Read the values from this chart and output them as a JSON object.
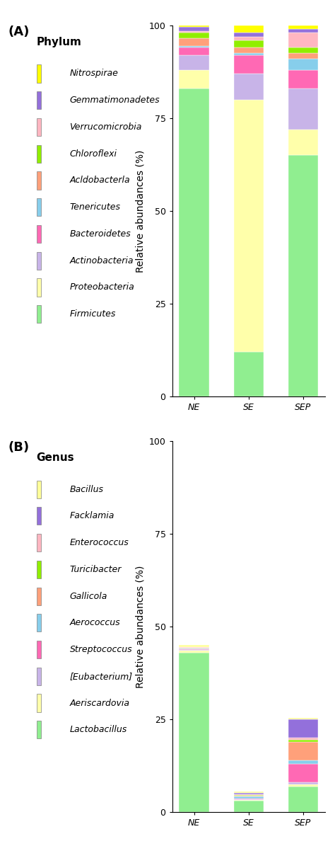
{
  "phylum": {
    "categories": [
      "NE",
      "SE",
      "SEP"
    ],
    "layers": [
      {
        "name": "Firmicutes",
        "color": "#90EE90",
        "values": [
          83,
          12,
          65
        ]
      },
      {
        "name": "Proteobacteria",
        "color": "#FFFFAA",
        "values": [
          5,
          68,
          7
        ]
      },
      {
        "name": "Actinobacteria",
        "color": "#C8B4E8",
        "values": [
          4,
          7,
          11
        ]
      },
      {
        "name": "Bacteroidetes",
        "color": "#FF69B4",
        "values": [
          2,
          5,
          5
        ]
      },
      {
        "name": "Tenericutes",
        "color": "#87CEEB",
        "values": [
          0.5,
          0.5,
          3
        ]
      },
      {
        "name": "Acldobacterla",
        "color": "#FFA07A",
        "values": [
          2,
          1.5,
          1.5
        ]
      },
      {
        "name": "Chloroflexi",
        "color": "#90EE00",
        "values": [
          1.5,
          2,
          1.5
        ]
      },
      {
        "name": "Verrucomicrobia",
        "color": "#FFB6C1",
        "values": [
          0.5,
          1,
          4
        ]
      },
      {
        "name": "Gemmatimonadetes",
        "color": "#9370DB",
        "values": [
          1,
          1,
          1
        ]
      },
      {
        "name": "Nitrospirae",
        "color": "#FFFF00",
        "values": [
          0.5,
          2,
          1
        ]
      }
    ],
    "ylabel": "Relative abundances (%)",
    "ylim": [
      0,
      100
    ],
    "yticks": [
      0,
      25,
      50,
      75,
      100
    ]
  },
  "genus": {
    "categories": [
      "NE",
      "SE",
      "SEP"
    ],
    "layers": [
      {
        "name": "Lactobacillus",
        "color": "#90EE90",
        "values": [
          43,
          3,
          7
        ]
      },
      {
        "name": "Aeriscardovia",
        "color": "#FFFFAA",
        "values": [
          0.5,
          0.3,
          0.5
        ]
      },
      {
        "name": "[Eubacterium]",
        "color": "#C8B4E8",
        "values": [
          0.3,
          0.2,
          0.5
        ]
      },
      {
        "name": "Streptococcus",
        "color": "#FF69B4",
        "values": [
          0.2,
          0.2,
          5
        ]
      },
      {
        "name": "Aerococcus",
        "color": "#87CEEB",
        "values": [
          0.1,
          0.5,
          1
        ]
      },
      {
        "name": "Gallicola",
        "color": "#FFA07A",
        "values": [
          0.1,
          0.3,
          5
        ]
      },
      {
        "name": "Turicibacter",
        "color": "#90EE00",
        "values": [
          0.1,
          0.2,
          0.5
        ]
      },
      {
        "name": "Enterococcus",
        "color": "#FFB6C1",
        "values": [
          0.1,
          0.2,
          0.5
        ]
      },
      {
        "name": "Facklamia",
        "color": "#9370DB",
        "values": [
          0.1,
          0.3,
          5
        ]
      },
      {
        "name": "Bacillus",
        "color": "#FFFF99",
        "values": [
          0.5,
          0.3,
          0.5
        ]
      }
    ],
    "ylabel": "Relative abundances (%)",
    "ylim": [
      0,
      100
    ],
    "yticks": [
      0,
      25,
      50,
      75,
      100
    ]
  },
  "label_A": "(A)",
  "label_B": "(B)",
  "bg_color": "#FFFFFF",
  "fig_width": 4.74,
  "fig_height": 11.95
}
